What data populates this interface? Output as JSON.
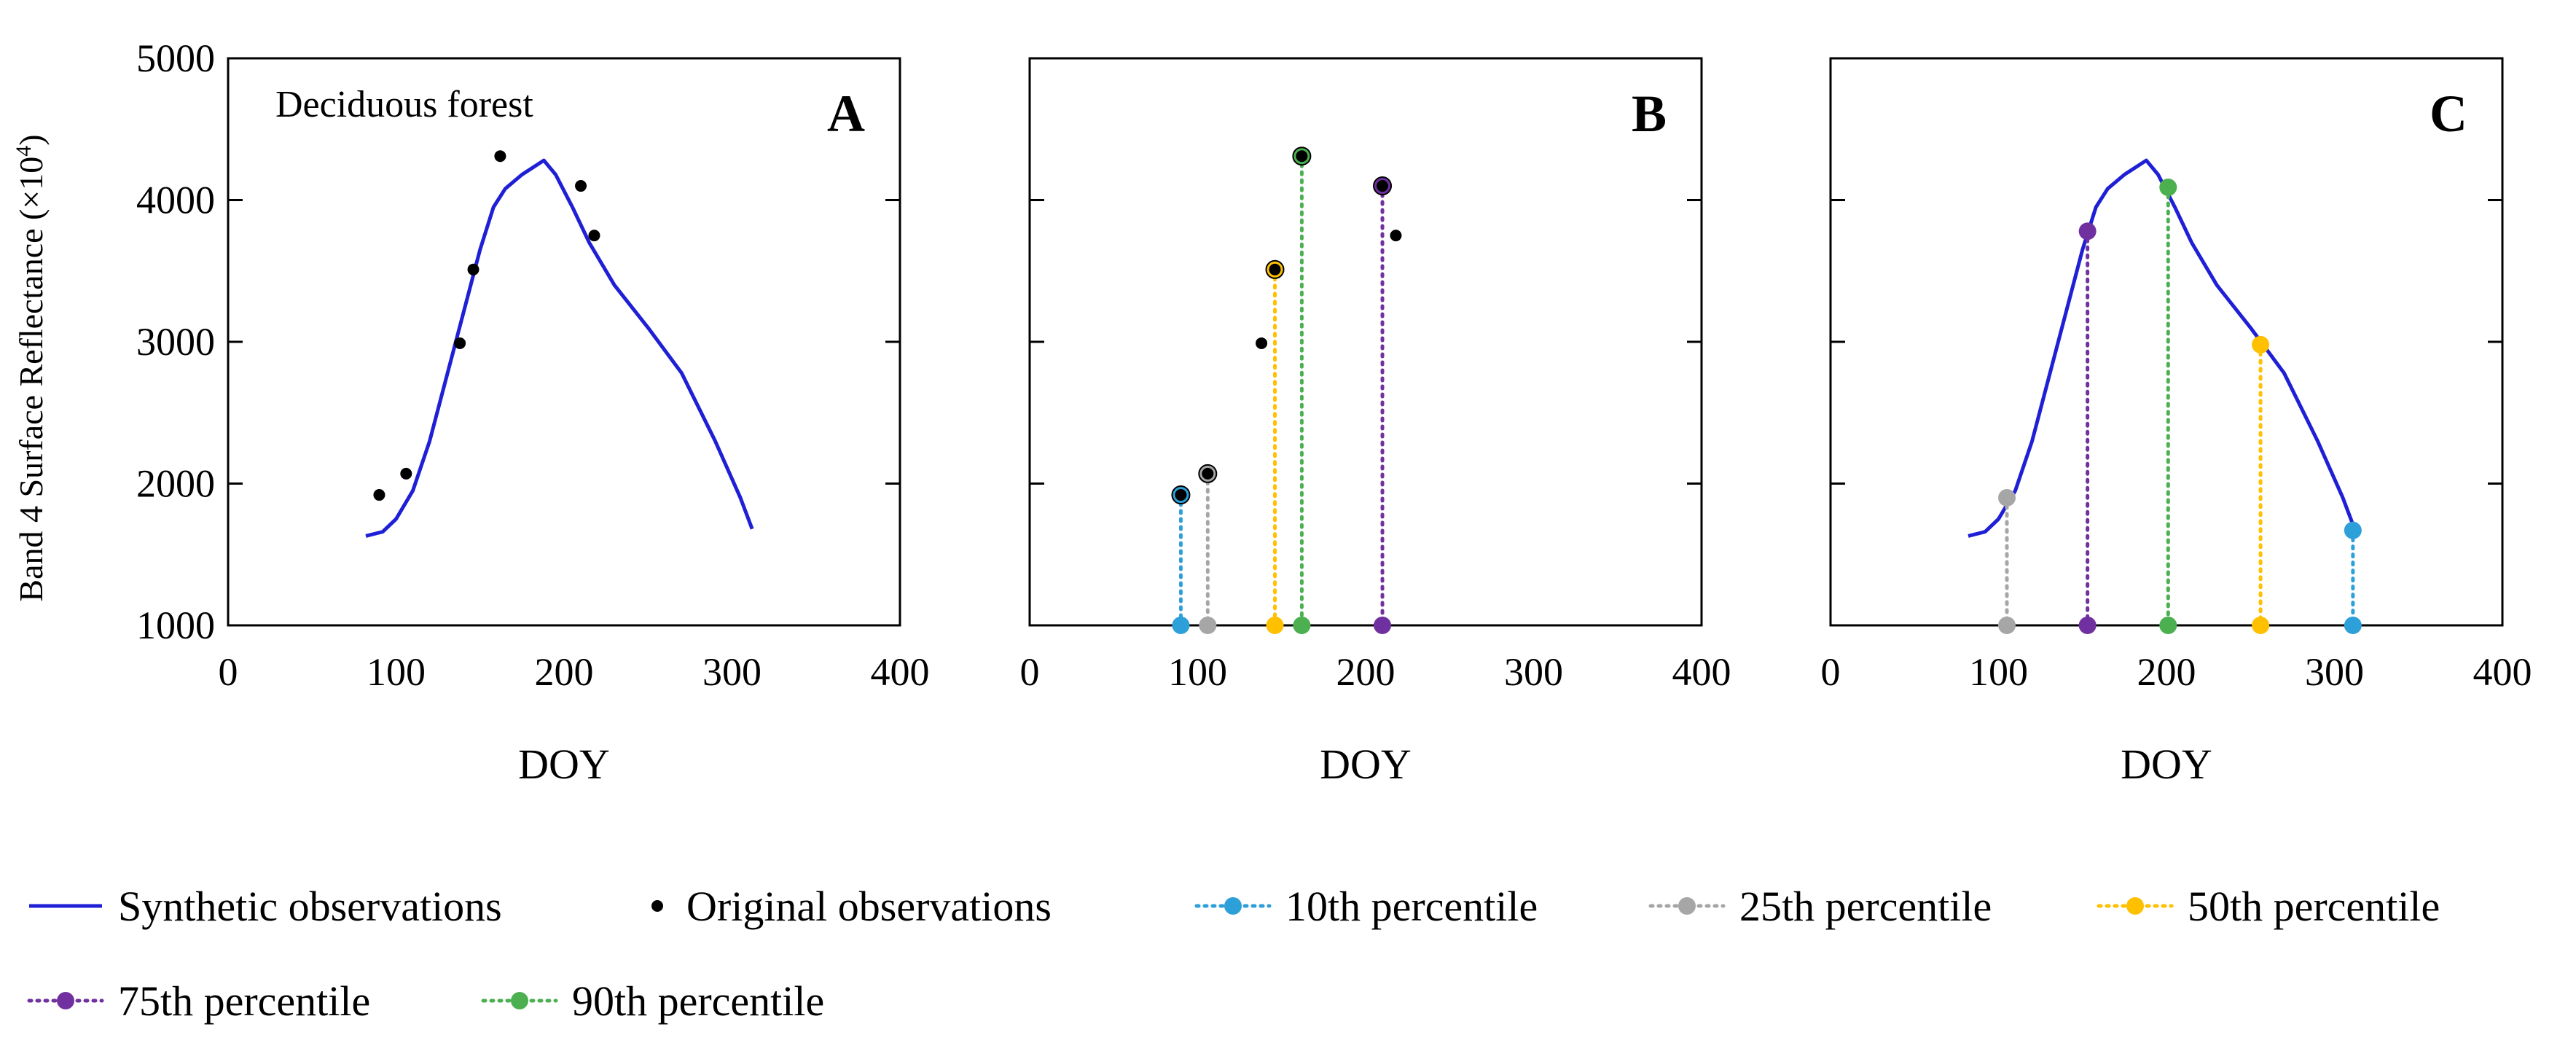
{
  "chart_data": {
    "type": "line",
    "ylabel_main": "Band 4 Surface Reflectance (×10",
    "ylabel_sup": "4",
    "ylabel_close": ")",
    "xlim": [
      0,
      400
    ],
    "ylim": [
      1000,
      5000
    ],
    "x_ticks": [
      "0",
      "100",
      "200",
      "300",
      "400"
    ],
    "y_ticks": [
      "1000",
      "2000",
      "3000",
      "4000",
      "5000"
    ],
    "colors": {
      "synthetic": "#1f1fd6",
      "original": "#000000",
      "p10": "#2d9fd9",
      "p25": "#a6a6a6",
      "p50": "#ffc000",
      "p75": "#7030a0",
      "p90": "#4caf50"
    },
    "synthetic_curve": {
      "x": [
        82,
        92,
        100,
        110,
        120,
        130,
        140,
        150,
        158,
        165,
        175,
        188,
        195,
        205,
        215,
        230,
        250,
        270,
        290,
        305,
        312
      ],
      "y": [
        1630,
        1660,
        1750,
        1950,
        2300,
        2750,
        3200,
        3650,
        3950,
        4080,
        4180,
        4280,
        4180,
        3950,
        3700,
        3400,
        3100,
        2780,
        2300,
        1900,
        1680
      ]
    },
    "original_observations": {
      "x": [
        90,
        106,
        138,
        146,
        162,
        210,
        218
      ],
      "y": [
        1920,
        2070,
        2990,
        3510,
        4310,
        4100,
        3750
      ]
    },
    "legend": [
      {
        "key": "synthetic",
        "label": "Synthetic observations"
      },
      {
        "key": "original",
        "label": "Original observations"
      },
      {
        "key": "p10",
        "label": "10th percentile"
      },
      {
        "key": "p25",
        "label": "25th percentile"
      },
      {
        "key": "p50",
        "label": "50th percentile"
      },
      {
        "key": "p75",
        "label": "75th percentile"
      },
      {
        "key": "p90",
        "label": "90th percentile"
      }
    ],
    "panels": [
      {
        "letter": "A",
        "xlabel": "DOY",
        "annotation": "Deciduous forest",
        "show_curve": true,
        "show_observations": true,
        "markers": []
      },
      {
        "letter": "B",
        "xlabel": "DOY",
        "annotation": "",
        "show_curve": false,
        "show_observations": true,
        "markers": [
          {
            "key": "p10",
            "x": 90,
            "y": 1920
          },
          {
            "key": "p25",
            "x": 106,
            "y": 2070
          },
          {
            "key": "p50",
            "x": 146,
            "y": 3510
          },
          {
            "key": "p90",
            "x": 162,
            "y": 4310
          },
          {
            "key": "p75",
            "x": 210,
            "y": 4100
          }
        ]
      },
      {
        "letter": "C",
        "xlabel": "DOY",
        "annotation": "",
        "show_curve": true,
        "show_observations": false,
        "markers": [
          {
            "key": "p25",
            "x": 105,
            "y": 1900
          },
          {
            "key": "p75",
            "x": 153,
            "y": 3780
          },
          {
            "key": "p90",
            "x": 201,
            "y": 4090
          },
          {
            "key": "p50",
            "x": 256,
            "y": 2980
          },
          {
            "key": "p10",
            "x": 311,
            "y": 1670
          }
        ]
      }
    ]
  }
}
